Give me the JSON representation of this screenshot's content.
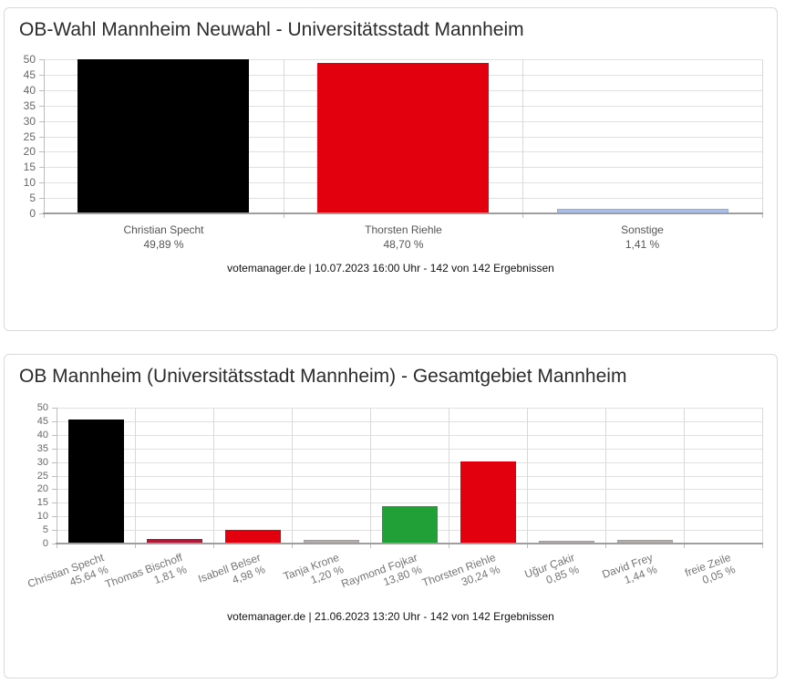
{
  "colors": {
    "grid": "#e0e0e0",
    "separator": "#d9d9d9",
    "axis": "#9e9e9e",
    "axis_light": "#bdbdbd",
    "tick_label": "#666666",
    "category_label": "#555555",
    "rotated_label": "#757575",
    "caption_text": "#111111",
    "title_text": "#2b2b2b",
    "card_border": "#d9d9d9",
    "black_bar": "#000000",
    "red_bar": "#e2000f",
    "dark_red_bar": "#b11936",
    "green_bar": "#21a038",
    "gray_bar": "#b3adad",
    "light_blue_bar": "#aac0e8"
  },
  "chart_data": [
    {
      "type": "bar",
      "title": "OB-Wahl Mannheim Neuwahl - Universitätsstadt Mannheim",
      "categories": [
        "Christian Specht",
        "Thorsten Riehle",
        "Sonstige"
      ],
      "values": [
        49.89,
        48.7,
        1.41
      ],
      "value_labels": [
        "49,89 %",
        "48,70 %",
        "1,41 %"
      ],
      "bar_colors": [
        "#000000",
        "#e2000f",
        "#aac0e8"
      ],
      "bar_borders": [
        null,
        null,
        "#8ea9da"
      ],
      "ylim": [
        0,
        50
      ],
      "ytick_step": 5,
      "yticks": [
        0,
        5,
        10,
        15,
        20,
        25,
        30,
        35,
        40,
        45,
        50
      ],
      "grid": true,
      "legend_position": "none",
      "xlabel": "",
      "ylabel": "",
      "caption": "votemanager.de | 10.07.2023 16:00 Uhr - 142 von 142 Ergebnissen"
    },
    {
      "type": "bar",
      "title": "OB Mannheim (Universitätsstadt Mannheim) - Gesamtgebiet Mannheim",
      "categories": [
        "Christian Specht",
        "Thomas Bischoff",
        "Isabell Belser",
        "Tanja Krone",
        "Raymond Fojkar",
        "Thorsten Riehle",
        "Uğur Çakir",
        "David Frey",
        "freie Zeile"
      ],
      "values": [
        45.64,
        1.81,
        4.98,
        1.2,
        13.8,
        30.24,
        0.85,
        1.44,
        0.05
      ],
      "value_labels": [
        "45,64 %",
        "1,81 %",
        "4,98 %",
        "1,20 %",
        "13,80 %",
        "30,24 %",
        "0,85 %",
        "1,44 %",
        "0,05 %"
      ],
      "bar_colors": [
        "#000000",
        "#b11936",
        "#e2000f",
        "#b3adad",
        "#21a038",
        "#e2000f",
        "#b3adad",
        "#b3adad",
        "#b3adad"
      ],
      "bar_borders": [
        null,
        "#a21430",
        null,
        "#a39c9c",
        null,
        null,
        "#a39c9c",
        "#a39c9c",
        "#a39c9c"
      ],
      "ylim": [
        0,
        50
      ],
      "ytick_step": 5,
      "yticks": [
        0,
        5,
        10,
        15,
        20,
        25,
        30,
        35,
        40,
        45,
        50
      ],
      "grid": true,
      "legend_position": "none",
      "xlabel": "",
      "ylabel": "",
      "caption": "votemanager.de | 21.06.2023 13:20 Uhr - 142 von 142 Ergebnissen"
    }
  ]
}
